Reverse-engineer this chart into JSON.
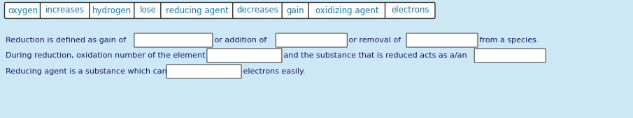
{
  "bg_color": "#cce8f4",
  "tile_bg": "#ffffff",
  "tile_border": "#333333",
  "tile_text_color": "#1a7aaa",
  "body_text_color": "#1a1a6a",
  "blank_box_bg": "#ffffff",
  "blank_box_border": "#444444",
  "tiles": [
    "oxygen",
    "increases",
    "hydrogen",
    "lose",
    "reducing agent",
    "decreases",
    "gain",
    "oxidizing agent",
    "electrons"
  ],
  "tile_font_size": 8.5,
  "body_font_size": 8.0,
  "fig_width": 9.05,
  "fig_height": 1.7,
  "dpi": 100
}
